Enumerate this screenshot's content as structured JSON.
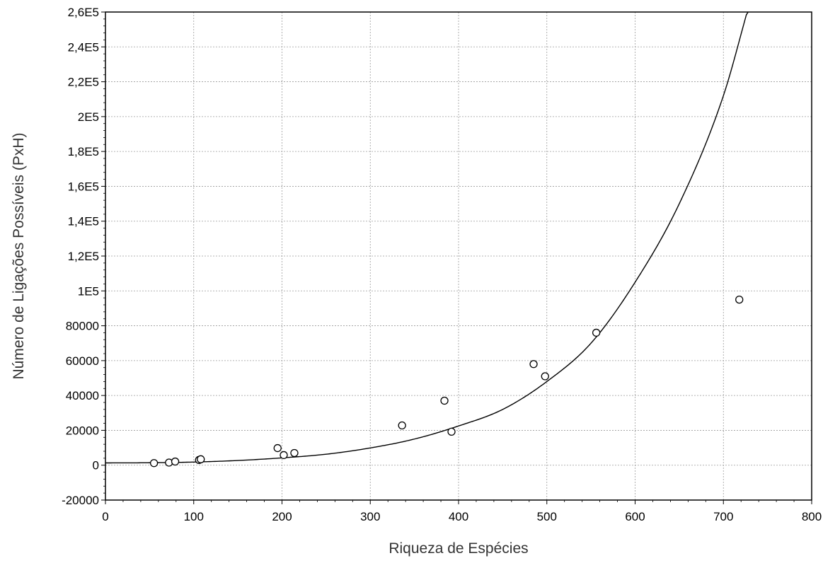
{
  "chart_data": {
    "type": "scatter",
    "title": "",
    "xlabel": "Riqueza de Espécies",
    "ylabel": "Número de Ligações Possíveis (PxH)",
    "xlim": [
      0,
      800
    ],
    "ylim": [
      -20000,
      260000
    ],
    "x_ticks": [
      0,
      100,
      200,
      300,
      400,
      500,
      600,
      700,
      800
    ],
    "x_tick_labels": [
      "0",
      "100",
      "200",
      "300",
      "400",
      "500",
      "600",
      "700",
      "800"
    ],
    "y_ticks": [
      -20000,
      0,
      20000,
      40000,
      60000,
      80000,
      100000,
      120000,
      140000,
      160000,
      180000,
      200000,
      220000,
      240000,
      260000
    ],
    "y_tick_labels": [
      "-20000",
      "0",
      "20000",
      "40000",
      "60000",
      "80000",
      "1E5",
      "1,2E5",
      "1,4E5",
      "1,6E5",
      "1,8E5",
      "2E5",
      "2,2E5",
      "2,4E5",
      "2,6E5"
    ],
    "grid": true,
    "points": [
      {
        "x": 55,
        "y": 1200
      },
      {
        "x": 72,
        "y": 1500
      },
      {
        "x": 79,
        "y": 2100
      },
      {
        "x": 106,
        "y": 3000
      },
      {
        "x": 108,
        "y": 3400
      },
      {
        "x": 195,
        "y": 9800
      },
      {
        "x": 202,
        "y": 5800
      },
      {
        "x": 214,
        "y": 7000
      },
      {
        "x": 336,
        "y": 22800
      },
      {
        "x": 384,
        "y": 37000
      },
      {
        "x": 392,
        "y": 19200
      },
      {
        "x": 485,
        "y": 58000
      },
      {
        "x": 498,
        "y": 51000
      },
      {
        "x": 556,
        "y": 76000
      },
      {
        "x": 718,
        "y": 95000
      }
    ],
    "fit_curve": {
      "type": "exponential",
      "x": [
        0,
        50,
        100,
        150,
        200,
        250,
        300,
        350,
        400,
        450,
        500,
        550,
        600,
        650,
        700,
        728
      ],
      "y": [
        1300,
        1400,
        1800,
        2700,
        4200,
        6300,
        9900,
        15000,
        22500,
        32000,
        48000,
        70000,
        105000,
        150000,
        212000,
        262000
      ]
    }
  }
}
